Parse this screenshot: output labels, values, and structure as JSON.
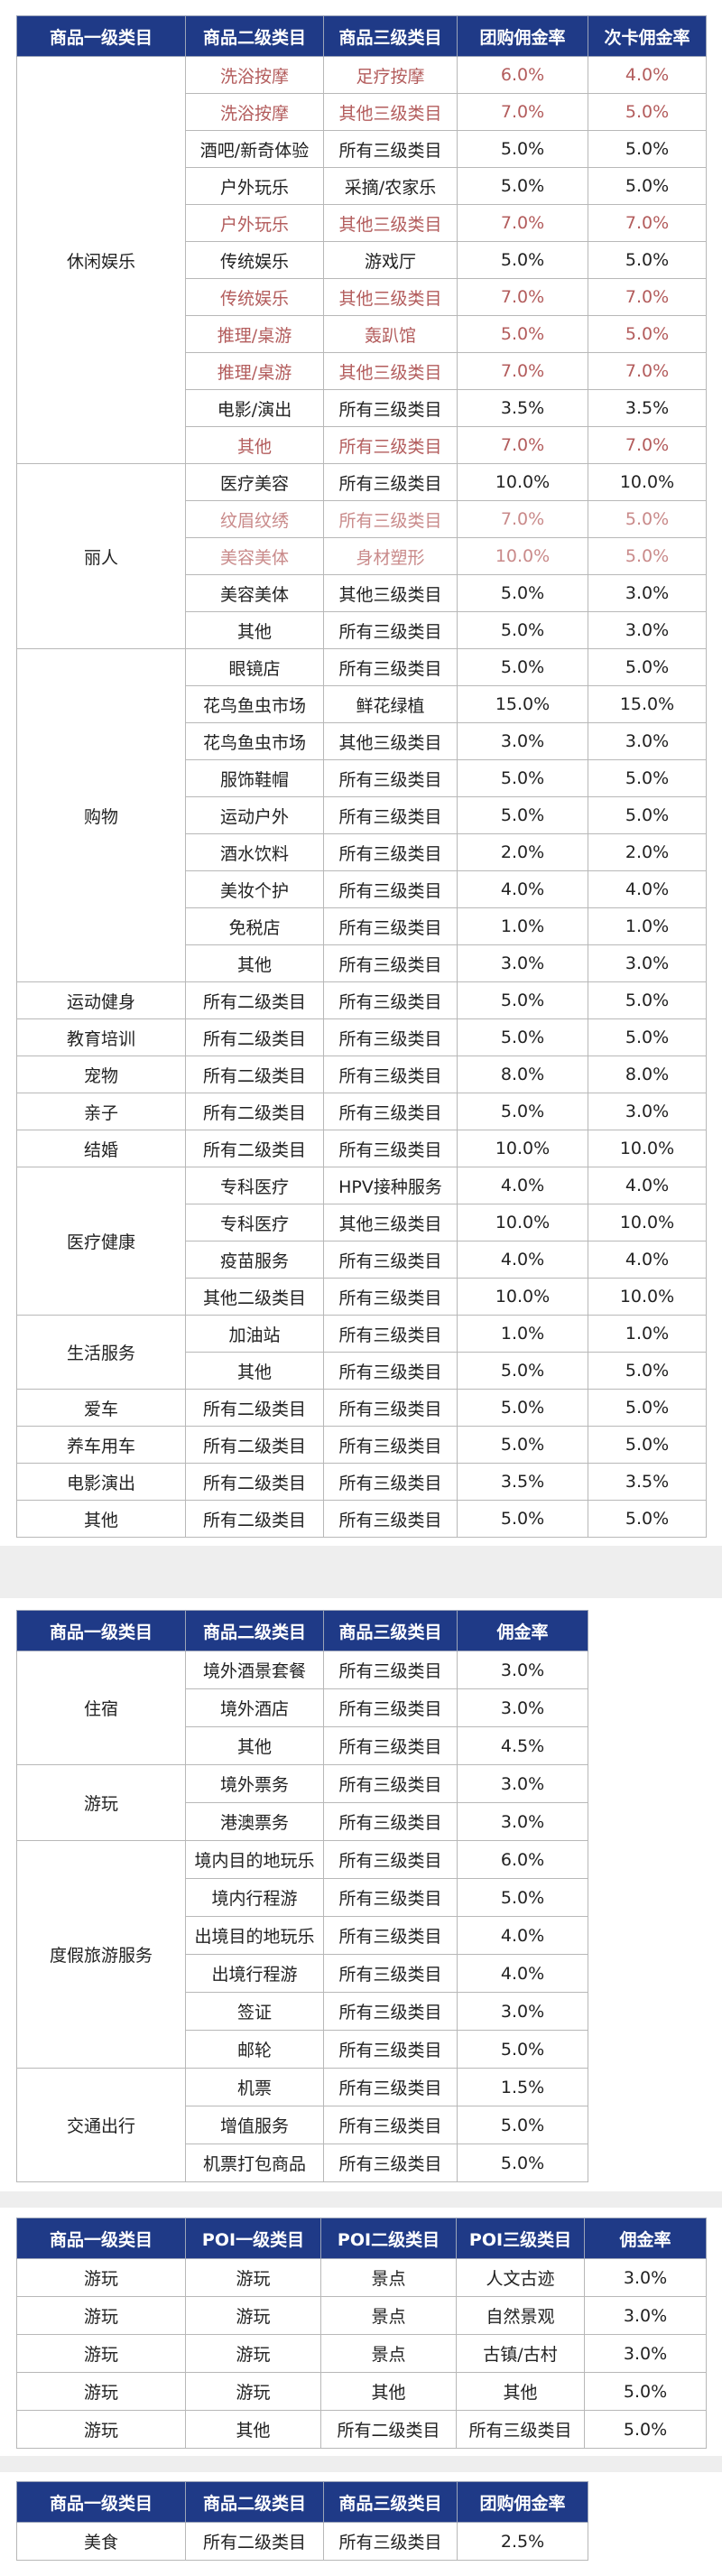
{
  "tables": [
    {
      "header": [
        "商品一级类目",
        "商品二级类目",
        "商品三级类目",
        "团购佣金率",
        "次卡佣金率"
      ],
      "groups": [
        {
          "name": "休闲娱乐",
          "rows": [
            {
              "cells": [
                "洗浴按摩",
                "足疗按摩",
                "6.0%",
                "4.0%"
              ],
              "color": "#b35c5c"
            },
            {
              "cells": [
                "洗浴按摩",
                "其他三级类目",
                "7.0%",
                "5.0%"
              ],
              "color": "#b35c5c"
            },
            {
              "cells": [
                "酒吧/新奇体验",
                "所有三级类目",
                "5.0%",
                "5.0%"
              ]
            },
            {
              "cells": [
                "户外玩乐",
                "采摘/农家乐",
                "5.0%",
                "5.0%"
              ]
            },
            {
              "cells": [
                "户外玩乐",
                "其他三级类目",
                "7.0%",
                "7.0%"
              ],
              "color": "#b35c5c"
            },
            {
              "cells": [
                "传统娱乐",
                "游戏厅",
                "5.0%",
                "5.0%"
              ]
            },
            {
              "cells": [
                "传统娱乐",
                "其他三级类目",
                "7.0%",
                "7.0%"
              ],
              "color": "#b35c5c"
            },
            {
              "cells": [
                "推理/桌游",
                "轰趴馆",
                "5.0%",
                "5.0%"
              ],
              "color": "#b35c5c"
            },
            {
              "cells": [
                "推理/桌游",
                "其他三级类目",
                "7.0%",
                "7.0%"
              ],
              "color": "#b35c5c"
            },
            {
              "cells": [
                "电影/演出",
                "所有三级类目",
                "3.5%",
                "3.5%"
              ]
            },
            {
              "cells": [
                "其他",
                "所有三级类目",
                "7.0%",
                "7.0%"
              ],
              "color": "#b35c5c"
            }
          ]
        },
        {
          "name": "丽人",
          "rows": [
            {
              "cells": [
                "医疗美容",
                "所有三级类目",
                "10.0%",
                "10.0%"
              ]
            },
            {
              "cells": [
                "纹眉纹绣",
                "所有三级类目",
                "7.0%",
                "5.0%"
              ],
              "color": "#c98a8a"
            },
            {
              "cells": [
                "美容美体",
                "身材塑形",
                "10.0%",
                "5.0%"
              ],
              "color": "#c98a8a"
            },
            {
              "cells": [
                "美容美体",
                "其他三级类目",
                "5.0%",
                "3.0%"
              ]
            },
            {
              "cells": [
                "其他",
                "所有三级类目",
                "5.0%",
                "3.0%"
              ]
            }
          ]
        },
        {
          "name": "购物",
          "rows": [
            {
              "cells": [
                "眼镜店",
                "所有三级类目",
                "5.0%",
                "5.0%"
              ]
            },
            {
              "cells": [
                "花鸟鱼虫市场",
                "鲜花绿植",
                "15.0%",
                "15.0%"
              ]
            },
            {
              "cells": [
                "花鸟鱼虫市场",
                "其他三级类目",
                "3.0%",
                "3.0%"
              ]
            },
            {
              "cells": [
                "服饰鞋帽",
                "所有三级类目",
                "5.0%",
                "5.0%"
              ]
            },
            {
              "cells": [
                "运动户外",
                "所有三级类目",
                "5.0%",
                "5.0%"
              ]
            },
            {
              "cells": [
                "酒水饮料",
                "所有三级类目",
                "2.0%",
                "2.0%"
              ]
            },
            {
              "cells": [
                "美妆个护",
                "所有三级类目",
                "4.0%",
                "4.0%"
              ]
            },
            {
              "cells": [
                "免税店",
                "所有三级类目",
                "1.0%",
                "1.0%"
              ]
            },
            {
              "cells": [
                "其他",
                "所有三级类目",
                "3.0%",
                "3.0%"
              ]
            }
          ]
        },
        {
          "name": "运动健身",
          "rows": [
            {
              "cells": [
                "所有二级类目",
                "所有三级类目",
                "5.0%",
                "5.0%"
              ]
            }
          ]
        },
        {
          "name": "教育培训",
          "rows": [
            {
              "cells": [
                "所有二级类目",
                "所有三级类目",
                "5.0%",
                "5.0%"
              ]
            }
          ]
        },
        {
          "name": "宠物",
          "rows": [
            {
              "cells": [
                "所有二级类目",
                "所有三级类目",
                "8.0%",
                "8.0%"
              ]
            }
          ]
        },
        {
          "name": "亲子",
          "rows": [
            {
              "cells": [
                "所有二级类目",
                "所有三级类目",
                "5.0%",
                "3.0%"
              ]
            }
          ]
        },
        {
          "name": "结婚",
          "rows": [
            {
              "cells": [
                "所有二级类目",
                "所有三级类目",
                "10.0%",
                "10.0%"
              ]
            }
          ]
        },
        {
          "name": "医疗健康",
          "rows": [
            {
              "cells": [
                "专科医疗",
                "HPV接种服务",
                "4.0%",
                "4.0%"
              ]
            },
            {
              "cells": [
                "专科医疗",
                "其他三级类目",
                "10.0%",
                "10.0%"
              ]
            },
            {
              "cells": [
                "疫苗服务",
                "所有三级类目",
                "4.0%",
                "4.0%"
              ]
            },
            {
              "cells": [
                "其他二级类目",
                "所有三级类目",
                "10.0%",
                "10.0%"
              ]
            }
          ]
        },
        {
          "name": "生活服务",
          "rows": [
            {
              "cells": [
                "加油站",
                "所有三级类目",
                "1.0%",
                "1.0%"
              ]
            },
            {
              "cells": [
                "其他",
                "所有三级类目",
                "5.0%",
                "5.0%"
              ]
            }
          ]
        },
        {
          "name": "爱车",
          "rows": [
            {
              "cells": [
                "所有二级类目",
                "所有三级类目",
                "5.0%",
                "5.0%"
              ]
            }
          ]
        },
        {
          "name": "养车用车",
          "rows": [
            {
              "cells": [
                "所有二级类目",
                "所有三级类目",
                "5.0%",
                "5.0%"
              ]
            }
          ]
        },
        {
          "name": "电影演出",
          "rows": [
            {
              "cells": [
                "所有二级类目",
                "所有三级类目",
                "3.5%",
                "3.5%"
              ]
            }
          ]
        },
        {
          "name": "其他",
          "rows": [
            {
              "cells": [
                "所有二级类目",
                "所有三级类目",
                "5.0%",
                "5.0%"
              ]
            }
          ]
        }
      ]
    },
    {
      "header": [
        "商品一级类目",
        "商品二级类目",
        "商品三级类目",
        "佣金率"
      ],
      "groups": [
        {
          "name": "住宿",
          "rows": [
            {
              "cells": [
                "境外酒景套餐",
                "所有三级类目",
                "3.0%"
              ]
            },
            {
              "cells": [
                "境外酒店",
                "所有三级类目",
                "3.0%"
              ]
            },
            {
              "cells": [
                "其他",
                "所有三级类目",
                "4.5%"
              ]
            }
          ]
        },
        {
          "name": "游玩",
          "rows": [
            {
              "cells": [
                "境外票务",
                "所有三级类目",
                "3.0%"
              ]
            },
            {
              "cells": [
                "港澳票务",
                "所有三级类目",
                "3.0%"
              ]
            }
          ]
        },
        {
          "name": "度假旅游服务",
          "rows": [
            {
              "cells": [
                "境内目的地玩乐",
                "所有三级类目",
                "6.0%"
              ]
            },
            {
              "cells": [
                "境内行程游",
                "所有三级类目",
                "5.0%"
              ]
            },
            {
              "cells": [
                "出境目的地玩乐",
                "所有三级类目",
                "4.0%"
              ]
            },
            {
              "cells": [
                "出境行程游",
                "所有三级类目",
                "4.0%"
              ]
            },
            {
              "cells": [
                "签证",
                "所有三级类目",
                "3.0%"
              ]
            },
            {
              "cells": [
                "邮轮",
                "所有三级类目",
                "5.0%"
              ]
            }
          ]
        },
        {
          "name": "交通出行",
          "rows": [
            {
              "cells": [
                "机票",
                "所有三级类目",
                "1.5%"
              ]
            },
            {
              "cells": [
                "增值服务",
                "所有三级类目",
                "5.0%"
              ]
            },
            {
              "cells": [
                "机票打包商品",
                "所有三级类目",
                "5.0%"
              ]
            }
          ]
        }
      ]
    },
    {
      "header": [
        "商品一级类目",
        "POI一级类目",
        "POI二级类目",
        "POI三级类目",
        "佣金率"
      ],
      "groups": [
        {
          "name": "游玩",
          "rows": [
            {
              "cells": [
                "游玩",
                "景点",
                "人文古迹",
                "3.0%"
              ]
            }
          ]
        },
        {
          "name": "游玩",
          "rows": [
            {
              "cells": [
                "游玩",
                "景点",
                "自然景观",
                "3.0%"
              ]
            }
          ]
        },
        {
          "name": "游玩",
          "rows": [
            {
              "cells": [
                "游玩",
                "景点",
                "古镇/古村",
                "3.0%"
              ]
            }
          ]
        },
        {
          "name": "游玩",
          "rows": [
            {
              "cells": [
                "游玩",
                "其他",
                "其他",
                "5.0%"
              ]
            }
          ]
        },
        {
          "name": "游玩",
          "rows": [
            {
              "cells": [
                "其他",
                "所有二级类目",
                "所有三级类目",
                "5.0%"
              ]
            }
          ]
        }
      ]
    },
    {
      "header": [
        "商品一级类目",
        "商品二级类目",
        "商品三级类目",
        "团购佣金率"
      ],
      "groups": [
        {
          "name": "美食",
          "rows": [
            {
              "cells": [
                "所有二级类目",
                "所有三级类目",
                "2.5%"
              ]
            }
          ]
        }
      ]
    }
  ]
}
